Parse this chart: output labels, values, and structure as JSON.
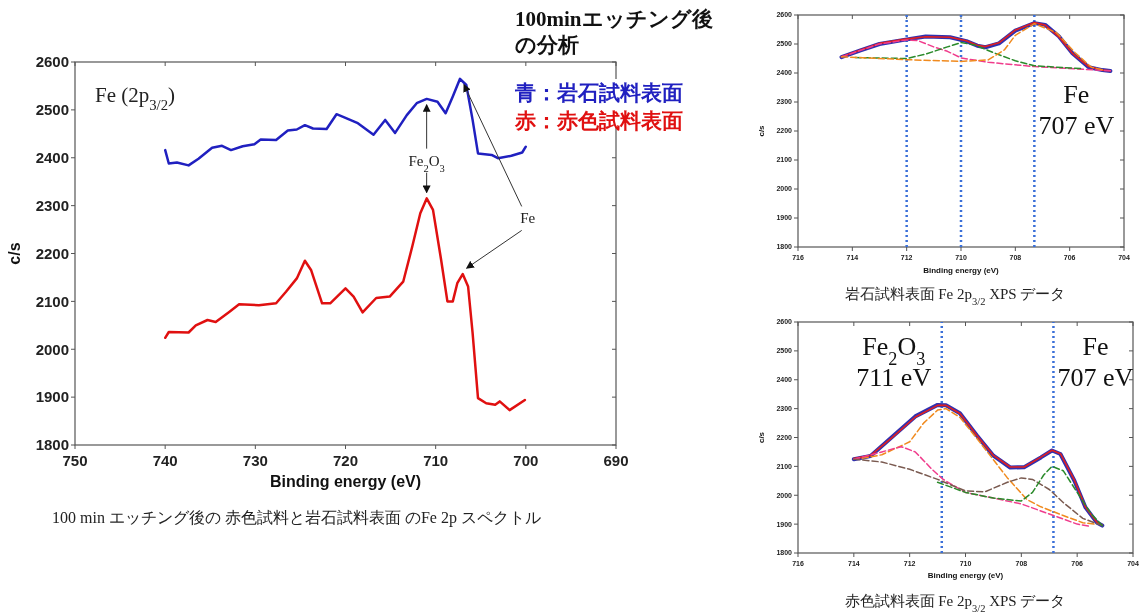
{
  "chart_data": [
    {
      "type": "line",
      "title": "100minエッチング後の分析",
      "xlabel": "Binding energy (eV)",
      "ylabel": "c/s",
      "xlim": [
        750,
        690
      ],
      "ylim": [
        1800,
        2600
      ],
      "xticks": [
        750,
        740,
        730,
        720,
        710,
        700,
        690
      ],
      "yticks": [
        1800,
        1900,
        2000,
        2100,
        2200,
        2300,
        2400,
        2500,
        2600
      ],
      "legend": "top right",
      "series": [
        {
          "name": "青：岩石試料表面",
          "color": "#2020c0",
          "x": [
            740,
            739.6,
            738.7,
            737.4,
            736.3,
            734.8,
            733.7,
            732.7,
            731.4,
            730.1,
            729.4,
            727.7,
            726.4,
            725.4,
            724.5,
            723.6,
            722.1,
            721,
            720.2,
            718.7,
            716.9,
            715.6,
            714.5,
            713.2,
            712.1,
            711,
            709.8,
            708.9,
            708.1,
            707.3,
            706.6,
            705.9,
            705.3,
            703.8,
            703.1,
            701.6,
            700.4,
            700
          ],
          "values": [
            2416,
            2388,
            2390,
            2384,
            2398,
            2421,
            2425,
            2416,
            2424,
            2428,
            2438,
            2437,
            2457,
            2459,
            2468,
            2461,
            2460,
            2491,
            2485,
            2473,
            2448,
            2479,
            2452,
            2489,
            2514,
            2523,
            2517,
            2493,
            2528,
            2565,
            2552,
            2479,
            2409,
            2406,
            2399,
            2404,
            2411,
            2423
          ]
        },
        {
          "name": "赤：赤色試料表面",
          "color": "#e01010",
          "x": [
            740,
            739.6,
            737.4,
            736.6,
            735.3,
            734.4,
            732.9,
            731.8,
            729.6,
            727.7,
            726.6,
            725.4,
            724.5,
            723.8,
            722.6,
            721.7,
            720,
            719.1,
            718.1,
            716.6,
            715.1,
            713.6,
            712.6,
            711.7,
            711,
            710.3,
            709.4,
            708.7,
            708.1,
            707.6,
            707,
            706.4,
            705.9,
            705.3,
            704.4,
            703.4,
            702.9,
            701.8,
            700.1
          ],
          "values": [
            2024,
            2036,
            2035,
            2050,
            2061,
            2057,
            2078,
            2094,
            2092,
            2096,
            2120,
            2148,
            2185,
            2165,
            2096,
            2096,
            2127,
            2110,
            2077,
            2107,
            2110,
            2141,
            2214,
            2284,
            2315,
            2291,
            2187,
            2100,
            2100,
            2138,
            2157,
            2131,
            2034,
            1898,
            1887,
            1884,
            1891,
            1873,
            1894
          ]
        }
      ],
      "annotations": [
        "Fe (2p$_{3/2}$)",
        {
          "text": "Fe$_{2}$O$_{3}$",
          "x": 711,
          "y": 2315
        },
        {
          "text": "Fe",
          "x": 707,
          "y": 2157
        },
        "100 min エッチング後の 赤色試料と岩石試料表面 のFe 2p スペクトル"
      ]
    },
    {
      "type": "line",
      "xlabel": "Binding energy (eV)",
      "ylabel": "c/s",
      "xlim": [
        716,
        704
      ],
      "ylim": [
        1800,
        2600
      ],
      "xticks": [
        716,
        714,
        712,
        710,
        708,
        706,
        704
      ],
      "yticks": [
        1800,
        1900,
        2000,
        2100,
        2200,
        2300,
        2400,
        2500,
        2600
      ],
      "series": [
        {
          "color": "#3030b0",
          "x": [
            714.4,
            713.7,
            713,
            712.1,
            711.3,
            710.4,
            709.8,
            709.4,
            709.1,
            708.6,
            708,
            707.3,
            706.9,
            706.4,
            705.9,
            705.3,
            704.8,
            704.5
          ],
          "values": [
            2455,
            2478,
            2500,
            2514,
            2526,
            2523,
            2510,
            2494,
            2489,
            2502,
            2546,
            2572,
            2566,
            2527,
            2468,
            2420,
            2410,
            2407
          ]
        },
        {
          "color": "#e02020",
          "x": [
            714.4,
            713.7,
            713,
            712.1,
            711.3,
            710.4,
            709.8,
            709.4,
            709.1,
            708.6,
            708,
            707.3,
            706.9,
            706.4,
            705.9,
            705.3,
            704.8,
            704.5
          ],
          "values": [
            2456,
            2479,
            2502,
            2516,
            2525,
            2523,
            2511,
            2496,
            2491,
            2504,
            2548,
            2574,
            2565,
            2525,
            2468,
            2422,
            2410,
            2408
          ]
        },
        {
          "color": "#f03c8c",
          "line_style": "dashed",
          "x": [
            714.4,
            713,
            712,
            711.6,
            711,
            710.5,
            710,
            709,
            707.3,
            704.5
          ],
          "values": [
            2456,
            2500,
            2514,
            2512,
            2490,
            2475,
            2452,
            2437,
            2422,
            2408
          ]
        },
        {
          "color": "#2a8a2a",
          "line_style": "dashed",
          "x": [
            713.9,
            712,
            711.3,
            710.5,
            710,
            709.5,
            708.8,
            708,
            707.3,
            705.6
          ],
          "values": [
            2453,
            2450,
            2465,
            2490,
            2505,
            2497,
            2470,
            2442,
            2425,
            2415
          ]
        },
        {
          "color": "#f08a1e",
          "line_style": "dashed",
          "x": [
            714.4,
            712,
            710,
            709,
            708.4,
            708,
            707.3,
            706.5,
            705.8,
            705.2,
            704.8
          ],
          "values": [
            2456,
            2446,
            2440,
            2445,
            2480,
            2530,
            2570,
            2540,
            2470,
            2420,
            2411
          ]
        }
      ],
      "ref_lines": [
        {
          "axis": "x",
          "value": 712,
          "color": "#3a6fd8",
          "line_style": "dotted"
        },
        {
          "axis": "x",
          "value": 710,
          "color": "#3a6fd8",
          "line_style": "dotted"
        },
        {
          "axis": "x",
          "value": 707.3,
          "label": "Fe 707 eV",
          "color": "#3a6fd8",
          "line_style": "dotted"
        }
      ],
      "annotations": [
        "岩石試料表面 Fe 2p$_{3/2}$ XPS データ"
      ]
    },
    {
      "type": "line",
      "xlabel": "Binding energy (eV)",
      "ylabel": "c/s",
      "xlim": [
        716,
        704
      ],
      "ylim": [
        1800,
        2600
      ],
      "xticks": [
        716,
        714,
        712,
        710,
        708,
        706,
        704
      ],
      "yticks": [
        1800,
        1900,
        2000,
        2100,
        2200,
        2300,
        2400,
        2500,
        2600
      ],
      "series": [
        {
          "color": "#3030b0",
          "x": [
            714,
            713.4,
            712.6,
            711.8,
            711,
            710.7,
            710.2,
            709.6,
            709,
            708.4,
            707.9,
            707.3,
            706.9,
            706.6,
            706.1,
            705.7,
            705.3,
            705.1
          ],
          "values": [
            2125,
            2136,
            2204,
            2273,
            2313,
            2312,
            2284,
            2208,
            2137,
            2096,
            2097,
            2131,
            2155,
            2143,
            2050,
            1958,
            1906,
            1895
          ]
        },
        {
          "color": "#e02020",
          "x": [
            714,
            713.4,
            712.6,
            711.8,
            711,
            710.7,
            710.2,
            709.6,
            709,
            708.4,
            707.9,
            707.3,
            706.9,
            706.6,
            706.1,
            705.7,
            705.3,
            705.1
          ],
          "values": [
            2127,
            2138,
            2202,
            2271,
            2311,
            2311,
            2283,
            2208,
            2138,
            2098,
            2098,
            2132,
            2156,
            2144,
            2052,
            1959,
            1907,
            1896
          ]
        },
        {
          "color": "#f08a1e",
          "line_style": "dashed",
          "x": [
            713.7,
            713,
            712,
            711.5,
            711,
            710.7,
            710.2,
            709.5,
            708.5,
            707.8,
            707.3,
            706.5,
            705.8,
            705.4
          ],
          "values": [
            2128,
            2140,
            2185,
            2250,
            2295,
            2300,
            2270,
            2185,
            2060,
            1985,
            1960,
            1930,
            1905,
            1900
          ]
        },
        {
          "color": "#f03c8c",
          "line_style": "dashed",
          "x": [
            714,
            713,
            712.3,
            711.8,
            711.2,
            710.8,
            710,
            709,
            708,
            707,
            706,
            705.6
          ],
          "values": [
            2125,
            2150,
            2168,
            2150,
            2090,
            2055,
            2010,
            1990,
            1970,
            1935,
            1900,
            1893
          ]
        },
        {
          "color": "#7a5a50",
          "line_style": "dashed",
          "x": [
            714,
            713,
            712,
            711,
            710,
            709.3,
            708.5,
            708,
            707.6,
            707,
            706.5,
            705.8,
            705.1
          ],
          "values": [
            2125,
            2115,
            2090,
            2055,
            2015,
            2012,
            2045,
            2060,
            2055,
            2020,
            1975,
            1920,
            1895
          ]
        },
        {
          "color": "#2a8a2a",
          "line_style": "dashed",
          "x": [
            711,
            710,
            709,
            708,
            707.6,
            707.2,
            706.9,
            706.5,
            706,
            705.5,
            705.1
          ],
          "values": [
            2045,
            2010,
            1990,
            1980,
            2010,
            2070,
            2100,
            2085,
            2010,
            1935,
            1895
          ]
        }
      ],
      "ref_lines": [
        {
          "axis": "x",
          "value": 710.85,
          "label": "Fe$_{2}$O$_{3}$ 711 eV",
          "color": "#3a6fd8",
          "line_style": "dotted"
        },
        {
          "axis": "x",
          "value": 706.85,
          "label": "Fe 707 eV",
          "color": "#3a6fd8",
          "line_style": "dotted"
        }
      ],
      "annotations": [
        "赤色試料表面 Fe 2p$_{3/2}$ XPS データ"
      ]
    }
  ]
}
